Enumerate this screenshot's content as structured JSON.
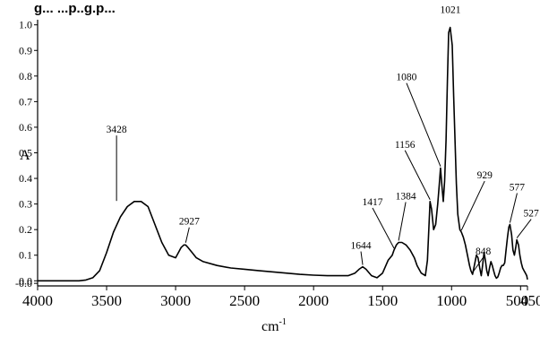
{
  "caption_fragment": "g... ...p..g.p...",
  "chart_data": {
    "type": "line",
    "ylabel": "A",
    "xlabel": "cm",
    "xlabel_superscript": "-1",
    "xlim": [
      4000,
      450
    ],
    "ylim": [
      -0.02,
      1.02
    ],
    "x_ticks": [
      {
        "value": 4000,
        "label": "4000"
      },
      {
        "value": 3500,
        "label": "3500"
      },
      {
        "value": 3000,
        "label": "3000"
      },
      {
        "value": 2500,
        "label": "2500"
      },
      {
        "value": 2000,
        "label": "2000"
      },
      {
        "value": 1500,
        "label": "1500"
      },
      {
        "value": 1000,
        "label": "1000"
      },
      {
        "value": 500,
        "label": "500"
      },
      {
        "value": 450,
        "label": "450"
      }
    ],
    "y_ticks": [
      {
        "value": 1.0,
        "label": "1.0"
      },
      {
        "value": 0.9,
        "label": "0.9"
      },
      {
        "value": 0.8,
        "label": "0.8"
      },
      {
        "value": 0.7,
        "label": "0.7"
      },
      {
        "value": 0.6,
        "label": "0.6"
      },
      {
        "value": 0.5,
        "label": "0.5"
      },
      {
        "value": 0.4,
        "label": "0.4"
      },
      {
        "value": 0.3,
        "label": "0.3"
      },
      {
        "value": 0.2,
        "label": "0.2"
      },
      {
        "value": 0.1,
        "label": "0.1"
      },
      {
        "value": 0.0,
        "label": "0.0"
      },
      {
        "value": -0.01,
        "label": "-0.0"
      }
    ],
    "series": [
      {
        "x": [
          4000,
          3700,
          3650,
          3600,
          3550,
          3500,
          3450,
          3400,
          3350,
          3300,
          3250,
          3200,
          3150,
          3100,
          3050,
          3000,
          2980,
          2960,
          2940,
          2927,
          2910,
          2880,
          2850,
          2800,
          2700,
          2600,
          2500,
          2400,
          2300,
          2200,
          2100,
          2000,
          1900,
          1800,
          1750,
          1700,
          1670,
          1644,
          1620,
          1580,
          1540,
          1500,
          1460,
          1430,
          1417,
          1400,
          1384,
          1360,
          1330,
          1300,
          1270,
          1250,
          1220,
          1190,
          1175,
          1160,
          1156,
          1145,
          1130,
          1115,
          1100,
          1090,
          1080,
          1070,
          1060,
          1050,
          1040,
          1030,
          1021,
          1010,
          995,
          985,
          975,
          965,
          955,
          940,
          929,
          915,
          900,
          885,
          870,
          860,
          848,
          835,
          820,
          808,
          796,
          785,
          775,
          765,
          755,
          745,
          735,
          725,
          715,
          705,
          695,
          685,
          675,
          665,
          655,
          645,
          635,
          625,
          615,
          605,
          595,
          585,
          577,
          565,
          555,
          545,
          535,
          527,
          515,
          505,
          495,
          485,
          475,
          465,
          455,
          450
        ],
        "y": [
          0.0,
          0.0,
          0.003,
          0.012,
          0.04,
          0.11,
          0.19,
          0.25,
          0.29,
          0.31,
          0.31,
          0.29,
          0.22,
          0.15,
          0.1,
          0.09,
          0.11,
          0.13,
          0.14,
          0.14,
          0.13,
          0.11,
          0.09,
          0.075,
          0.06,
          0.05,
          0.045,
          0.04,
          0.035,
          0.03,
          0.025,
          0.022,
          0.02,
          0.02,
          0.02,
          0.03,
          0.045,
          0.055,
          0.045,
          0.02,
          0.012,
          0.03,
          0.08,
          0.1,
          0.12,
          0.14,
          0.15,
          0.15,
          0.14,
          0.12,
          0.09,
          0.06,
          0.03,
          0.02,
          0.08,
          0.26,
          0.31,
          0.28,
          0.2,
          0.22,
          0.3,
          0.37,
          0.44,
          0.37,
          0.31,
          0.39,
          0.55,
          0.78,
          0.97,
          0.99,
          0.92,
          0.72,
          0.55,
          0.38,
          0.26,
          0.2,
          0.19,
          0.17,
          0.14,
          0.1,
          0.06,
          0.04,
          0.025,
          0.06,
          0.1,
          0.09,
          0.05,
          0.02,
          0.06,
          0.11,
          0.08,
          0.04,
          0.02,
          0.05,
          0.075,
          0.06,
          0.04,
          0.02,
          0.01,
          0.015,
          0.03,
          0.05,
          0.06,
          0.06,
          0.07,
          0.12,
          0.17,
          0.21,
          0.22,
          0.18,
          0.12,
          0.1,
          0.13,
          0.16,
          0.14,
          0.1,
          0.07,
          0.05,
          0.04,
          0.03,
          0.02,
          0.005
        ]
      }
    ],
    "annotations": [
      {
        "text": "3428",
        "x": 3428,
        "y": 0.305
      },
      {
        "text": "2927",
        "x": 2927,
        "y": 0.142
      },
      {
        "text": "1644",
        "x": 1644,
        "y": 0.055
      },
      {
        "text": "1417",
        "x": 1417,
        "y": 0.12
      },
      {
        "text": "1384",
        "x": 1384,
        "y": 0.15
      },
      {
        "text": "1156",
        "x": 1156,
        "y": 0.31
      },
      {
        "text": "1080",
        "x": 1080,
        "y": 0.44
      },
      {
        "text": "1021",
        "x": 1021,
        "y": 0.97
      },
      {
        "text": "929",
        "x": 929,
        "y": 0.19
      },
      {
        "text": "848",
        "x": 848,
        "y": 0.025
      },
      {
        "text": "577",
        "x": 577,
        "y": 0.22
      },
      {
        "text": "527",
        "x": 527,
        "y": 0.16
      }
    ],
    "grid": false,
    "legend": "none"
  }
}
